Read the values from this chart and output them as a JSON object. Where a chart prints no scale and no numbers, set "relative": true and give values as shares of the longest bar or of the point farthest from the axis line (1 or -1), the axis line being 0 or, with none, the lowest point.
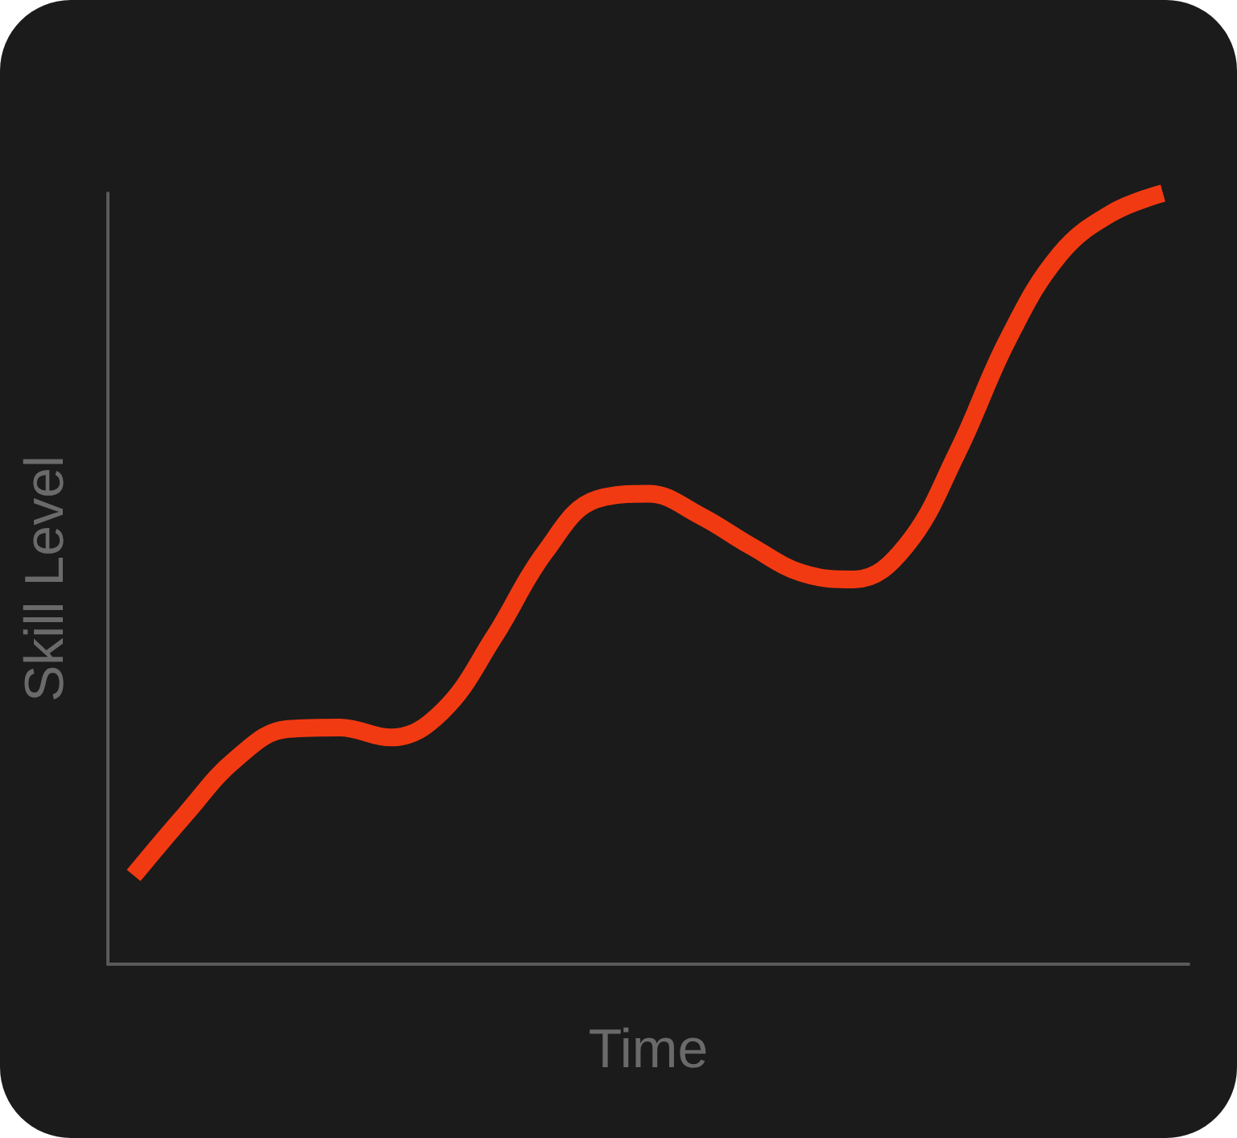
{
  "chart_data": {
    "type": "line",
    "relative": true,
    "xlabel": "Time",
    "ylabel": "Skill Level",
    "categories": [
      null,
      null,
      null,
      null,
      null,
      null,
      null,
      null,
      null,
      null,
      null,
      null,
      null,
      null,
      null,
      null,
      null,
      null,
      null,
      null,
      null
    ],
    "series": [
      {
        "color": "#f23a12",
        "values": [
          0.115,
          0.194,
          0.267,
          0.305,
          0.307,
          0.294,
          0.328,
          0.424,
          0.535,
          0.603,
          0.61,
          0.582,
          0.542,
          0.507,
          0.499,
          0.542,
          0.663,
          0.812,
          0.921,
          0.974,
          1
        ]
      }
    ],
    "marker": "none",
    "grid": false
  }
}
